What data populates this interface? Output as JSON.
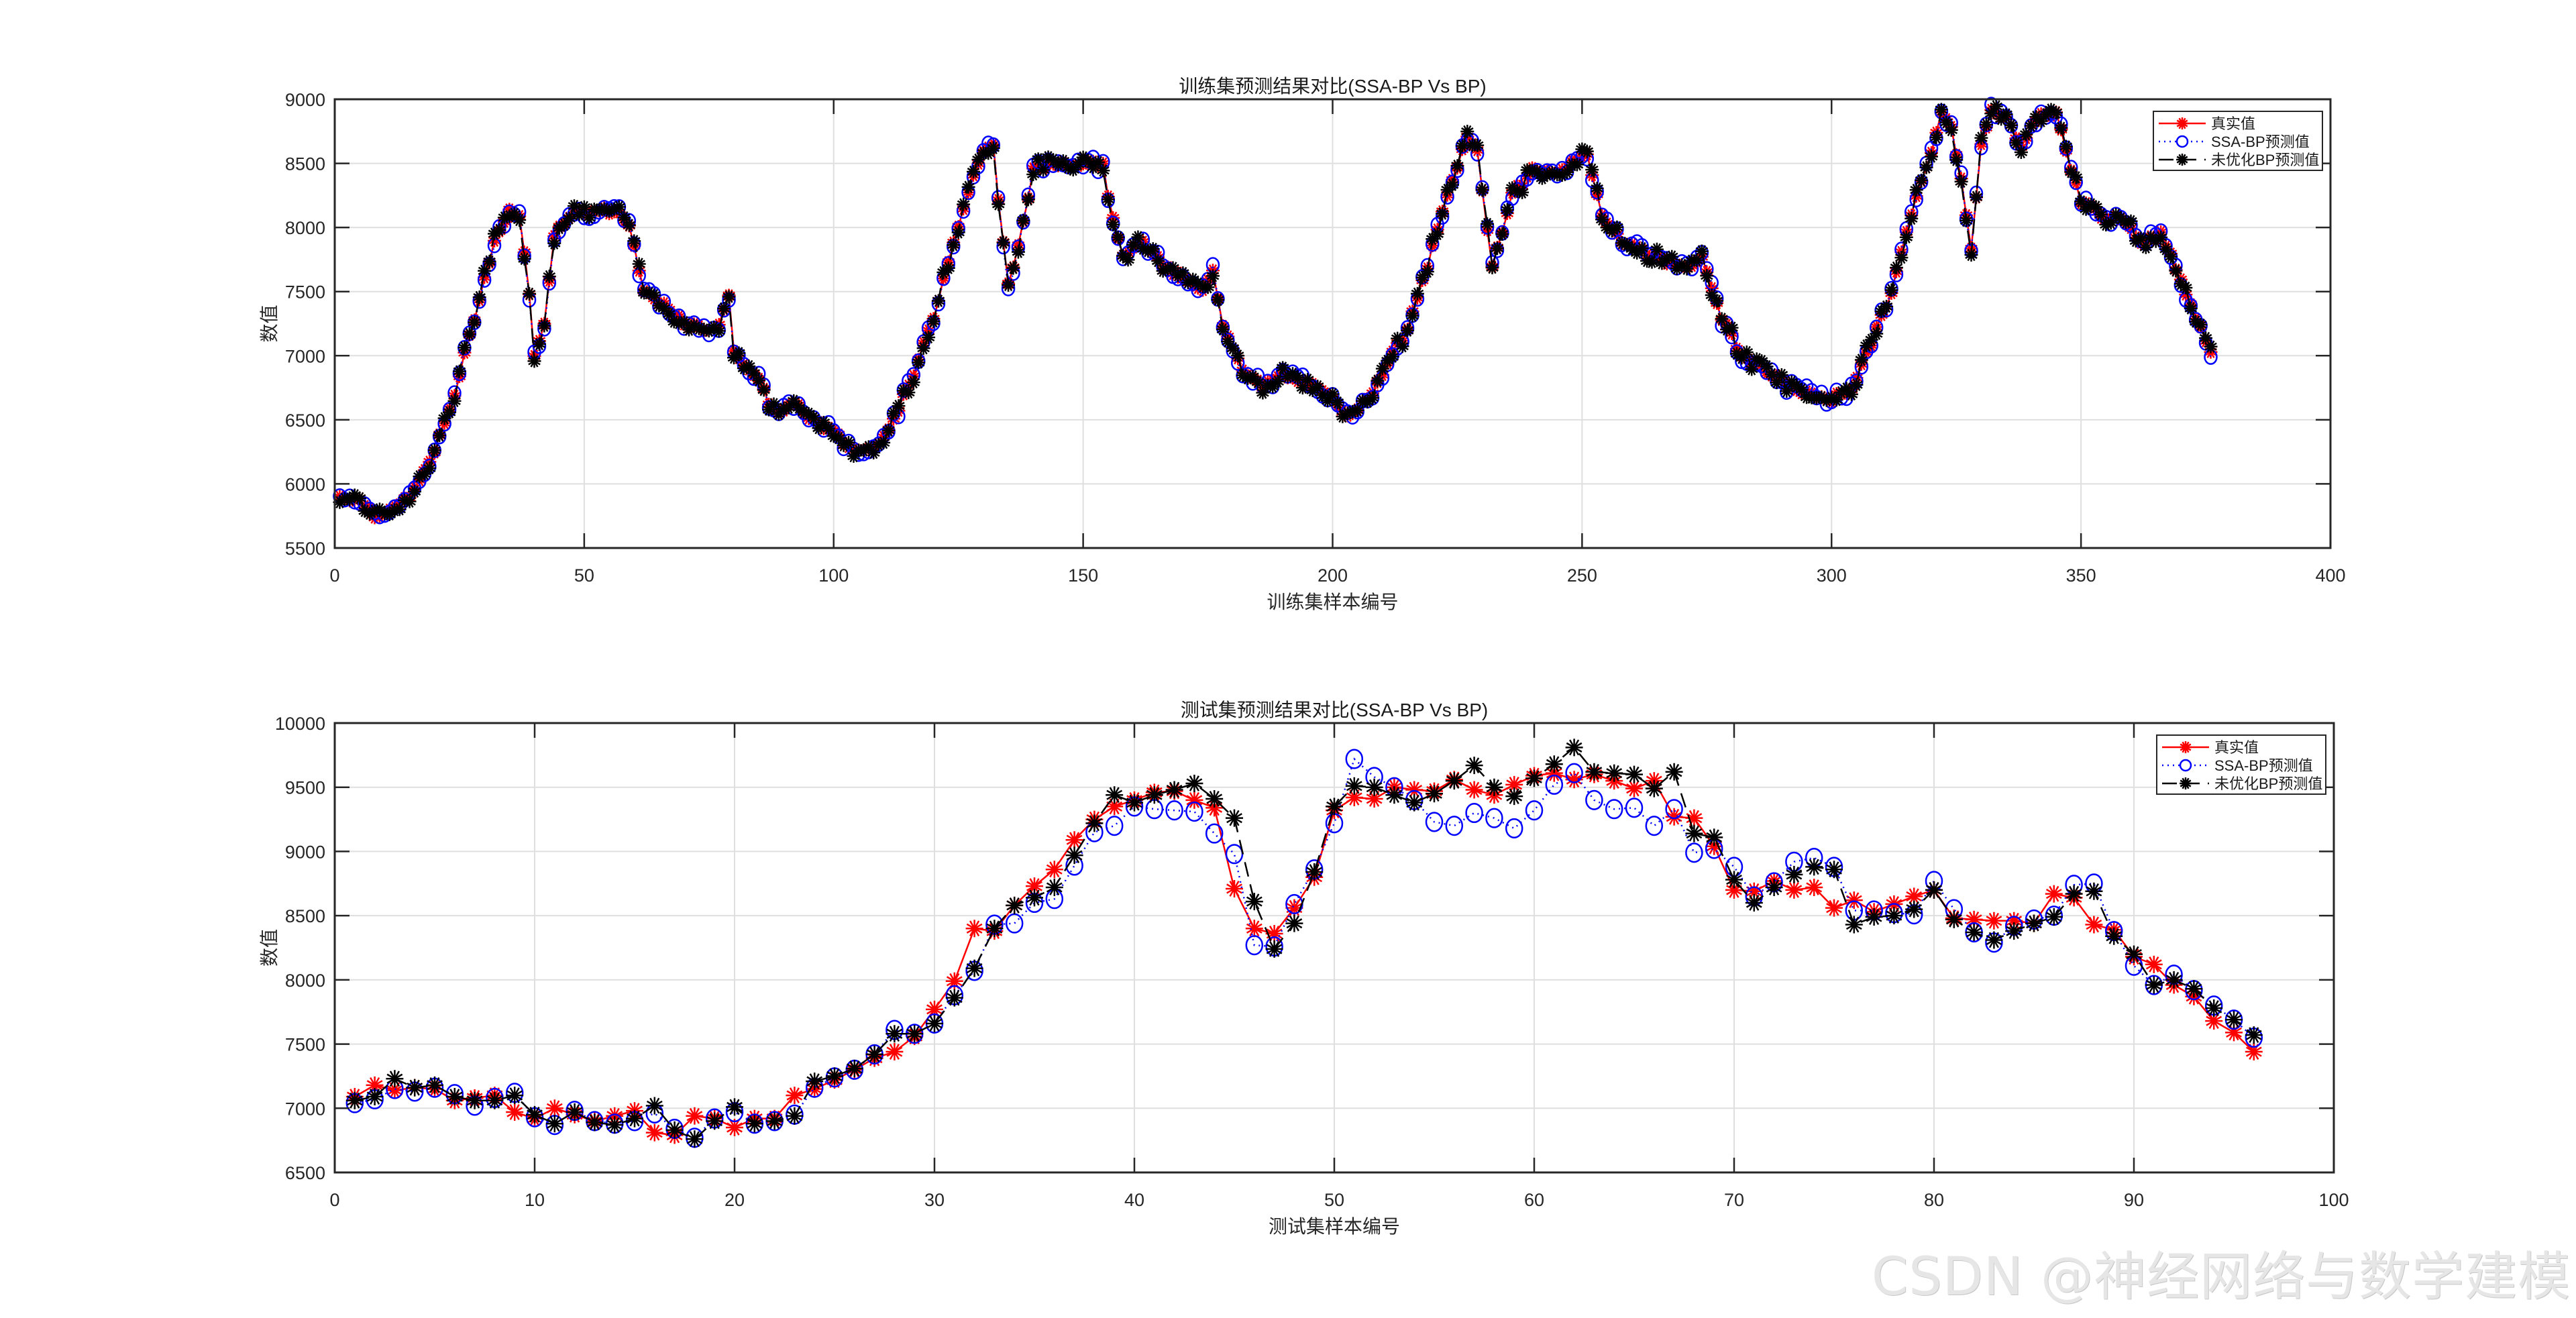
{
  "chart_data": [
    {
      "type": "line",
      "title": "训练集预测结果对比(SSA-BP Vs BP)",
      "xlabel": "训练集样本编号",
      "ylabel": "数值",
      "xlim": [
        0,
        400
      ],
      "ylim": [
        5500,
        9000
      ],
      "xticks": [
        0,
        50,
        100,
        150,
        200,
        250,
        300,
        350,
        400
      ],
      "yticks": [
        5500,
        6000,
        6500,
        7000,
        7500,
        8000,
        8500,
        9000
      ],
      "grid": true,
      "legend_position": "northeast",
      "n_points": 376,
      "control_points": {
        "x": [
          1,
          5,
          8,
          12,
          16,
          20,
          24,
          28,
          32,
          35,
          37,
          39,
          40,
          42,
          44,
          47,
          52,
          57,
          59,
          62,
          64,
          67,
          70,
          74,
          77,
          79,
          80,
          82,
          85,
          88,
          92,
          96,
          100,
          104,
          108,
          112,
          116,
          120,
          124,
          128,
          130,
          132,
          133,
          135,
          137,
          140,
          144,
          148,
          152,
          154,
          156,
          158,
          162,
          166,
          170,
          174,
          176,
          178,
          182,
          186,
          190,
          195,
          200,
          203,
          207,
          211,
          215,
          219,
          223,
          226,
          227,
          229,
          232,
          236,
          240,
          244,
          248,
          251,
          254,
          258,
          262,
          266,
          270,
          274,
          278,
          282,
          286,
          290,
          295,
          300,
          304,
          308,
          312,
          316,
          320,
          322,
          324,
          326,
          328,
          330,
          332,
          335,
          338,
          341,
          345,
          347,
          350,
          354,
          358,
          362,
          366,
          370,
          373,
          376
        ],
        "y": [
          5900,
          5880,
          5760,
          5800,
          5950,
          6250,
          6700,
          7300,
          7900,
          8120,
          8080,
          7500,
          6980,
          7250,
          7950,
          8100,
          8140,
          8120,
          8000,
          7500,
          7450,
          7350,
          7250,
          7200,
          7250,
          7450,
          7050,
          6950,
          6800,
          6560,
          6620,
          6500,
          6400,
          6260,
          6280,
          6500,
          6850,
          7300,
          7900,
          8400,
          8600,
          8650,
          8200,
          7550,
          7850,
          8450,
          8500,
          8500,
          8520,
          8480,
          8050,
          7800,
          7880,
          7700,
          7600,
          7500,
          7650,
          7250,
          6900,
          6750,
          6850,
          6780,
          6650,
          6550,
          6650,
          6950,
          7200,
          7700,
          8250,
          8600,
          8700,
          8600,
          7700,
          8250,
          8450,
          8420,
          8500,
          8550,
          8100,
          7900,
          7820,
          7750,
          7700,
          7750,
          7300,
          7000,
          6900,
          6800,
          6700,
          6660,
          6750,
          7100,
          7500,
          8100,
          8600,
          8880,
          8800,
          8380,
          7850,
          8650,
          8900,
          8850,
          8650,
          8850,
          8900,
          8600,
          8200,
          8100,
          8050,
          7900,
          7950,
          7600,
          7300,
          7050
        ]
      },
      "series": [
        {
          "name": "真实值",
          "color": "#ff0000",
          "line": "solid",
          "marker": "asterisk"
        },
        {
          "name": "SSA-BP预测值",
          "color": "#0000ff",
          "line": "dotted",
          "marker": "circle"
        },
        {
          "name": "未优化BP预测值",
          "color": "#000000",
          "line": "dashed",
          "marker": "asterisk"
        }
      ]
    },
    {
      "type": "line",
      "title": "测试集预测结果对比(SSA-BP Vs BP)",
      "xlabel": "测试集样本编号",
      "ylabel": "数值",
      "xlim": [
        0,
        100
      ],
      "ylim": [
        6500,
        10000
      ],
      "xticks": [
        0,
        10,
        20,
        30,
        40,
        50,
        60,
        70,
        80,
        90,
        100
      ],
      "yticks": [
        6500,
        7000,
        7500,
        8000,
        8500,
        9000,
        9500,
        10000
      ],
      "grid": true,
      "legend_position": "northeast",
      "x": [
        1,
        2,
        3,
        4,
        5,
        6,
        7,
        8,
        9,
        10,
        11,
        12,
        13,
        14,
        15,
        16,
        17,
        18,
        19,
        20,
        21,
        22,
        23,
        24,
        25,
        26,
        27,
        28,
        29,
        30,
        31,
        32,
        33,
        34,
        35,
        36,
        37,
        38,
        39,
        40,
        41,
        42,
        43,
        44,
        45,
        46,
        47,
        48,
        49,
        50,
        51,
        52,
        53,
        54,
        55,
        56,
        57,
        58,
        59,
        60,
        61,
        62,
        63,
        64,
        65,
        66,
        67,
        68,
        69,
        70,
        71,
        72,
        73,
        74,
        75,
        76,
        77,
        78,
        79,
        80,
        81,
        82,
        83,
        84,
        85,
        86,
        87,
        88,
        89,
        90,
        91,
        92,
        93,
        94,
        95,
        96
      ],
      "series": [
        {
          "name": "真实值",
          "color": "#ff0000",
          "line": "solid",
          "marker": "asterisk",
          "values": [
            7090,
            7180,
            7140,
            7160,
            7150,
            7060,
            7080,
            7100,
            6970,
            6920,
            7000,
            6950,
            6900,
            6940,
            6980,
            6810,
            6790,
            6940,
            6920,
            6850,
            6920,
            6920,
            7100,
            7150,
            7220,
            7300,
            7390,
            7440,
            7560,
            7770,
            7990,
            8400,
            8380,
            8580,
            8730,
            8860,
            9090,
            9250,
            9350,
            9400,
            9460,
            9470,
            9400,
            9340,
            8710,
            8400,
            8360,
            8560,
            8800,
            9320,
            9420,
            9410,
            9500,
            9480,
            9470,
            9560,
            9480,
            9440,
            9520,
            9590,
            9610,
            9560,
            9600,
            9550,
            9490,
            9550,
            9270,
            9260,
            9040,
            8700,
            8690,
            8770,
            8700,
            8720,
            8560,
            8620,
            8530,
            8590,
            8650,
            8700,
            8480,
            8470,
            8460,
            8460,
            8440,
            8670,
            8640,
            8430,
            8390,
            8180,
            8120,
            7960,
            7870,
            7680,
            7590,
            7440
          ]
        },
        {
          "name": "SSA-BP预测值",
          "color": "#0000ff",
          "line": "dotted",
          "marker": "circle",
          "values": [
            7040,
            7070,
            7150,
            7130,
            7160,
            7110,
            7020,
            7080,
            7120,
            6930,
            6870,
            6980,
            6900,
            6880,
            6900,
            6960,
            6840,
            6770,
            6920,
            6970,
            6880,
            6900,
            6950,
            7160,
            7240,
            7300,
            7420,
            7610,
            7580,
            7660,
            7880,
            8070,
            8430,
            8440,
            8600,
            8630,
            8890,
            9150,
            9200,
            9350,
            9330,
            9320,
            9310,
            9140,
            8980,
            8270,
            8260,
            8590,
            8860,
            9220,
            9720,
            9580,
            9500,
            9400,
            9230,
            9200,
            9300,
            9260,
            9180,
            9320,
            9520,
            9610,
            9400,
            9330,
            9340,
            9200,
            9330,
            8990,
            9020,
            8880,
            8650,
            8760,
            8920,
            8950,
            8880,
            8540,
            8540,
            8520,
            8510,
            8770,
            8550,
            8370,
            8290,
            8420,
            8470,
            8500,
            8740,
            8750,
            8380,
            8110,
            7960,
            8040,
            7920,
            7800,
            7690,
            7550
          ]
        },
        {
          "name": "未优化BP预测值",
          "color": "#000000",
          "line": "dashed",
          "marker": "asterisk",
          "values": [
            7060,
            7090,
            7230,
            7160,
            7180,
            7090,
            7060,
            7060,
            7100,
            6950,
            6880,
            6970,
            6890,
            6870,
            6920,
            7020,
            6830,
            6760,
            6900,
            7010,
            6880,
            6900,
            6940,
            7210,
            7250,
            7310,
            7420,
            7580,
            7580,
            7660,
            7860,
            8090,
            8400,
            8580,
            8640,
            8720,
            8970,
            9220,
            9440,
            9380,
            9440,
            9480,
            9530,
            9410,
            9260,
            8610,
            8240,
            8440,
            8840,
            9350,
            9510,
            9500,
            9440,
            9380,
            9450,
            9550,
            9670,
            9500,
            9430,
            9570,
            9680,
            9810,
            9620,
            9610,
            9600,
            9490,
            9620,
            9140,
            9110,
            8780,
            8600,
            8720,
            8820,
            8880,
            8860,
            8430,
            8490,
            8500,
            8550,
            8700,
            8470,
            8370,
            8310,
            8380,
            8440,
            8490,
            8670,
            8690,
            8340,
            8200,
            7960,
            8000,
            7930,
            7780,
            7690,
            7570
          ]
        }
      ]
    }
  ],
  "watermark": "CSDN @神经网络与数学建模"
}
